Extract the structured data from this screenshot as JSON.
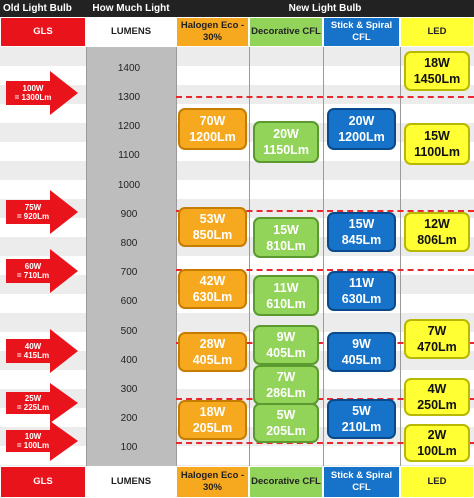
{
  "top_headers": {
    "old": "Old Light Bulb",
    "how": "How Much Light",
    "new": "New Light Bulb"
  },
  "columns": {
    "gls": "GLS",
    "lumens": "LUMENS",
    "halogen": "Halogen Eco -\n30%",
    "decorative": "Decorative CFL",
    "spiral": "Stick & Spiral CFL",
    "led": "LED"
  },
  "lumen_ticks": [
    "1400",
    "1300",
    "1200",
    "1100",
    "1000",
    "900",
    "800",
    "700",
    "600",
    "500",
    "400",
    "300",
    "200",
    "100"
  ],
  "gls_arrows": [
    "100W\n= 1300Lm",
    "75W\n= 920Lm",
    "60W\n= 710Lm",
    "40W\n= 415Lm",
    "25W\n= 225Lm",
    "10W\n= 100Lm"
  ],
  "halogen_boxes": [
    "70W\n1200Lm",
    "53W\n850Lm",
    "42W\n630Lm",
    "28W\n405Lm",
    "18W\n205Lm"
  ],
  "decorative_boxes": [
    "20W\n1150Lm",
    "15W\n810Lm",
    "11W\n610Lm",
    "9W\n405Lm",
    "7W\n286Lm",
    "5W\n205Lm"
  ],
  "spiral_boxes": [
    "20W\n1200Lm",
    "15W\n845Lm",
    "11W\n630Lm",
    "9W\n405Lm",
    "5W\n210Lm"
  ],
  "led_boxes": [
    "18W\n1450Lm",
    "15W\n1100Lm",
    "12W\n806Lm",
    "7W\n470Lm",
    "4W\n250Lm",
    "2W\n100Lm"
  ],
  "colors": {
    "gls_red": "#e8131b",
    "lumens_gray": "#bdbdbd",
    "halogen": "#f6a81f",
    "decorative": "#92d35a",
    "spiral": "#1673c9",
    "led": "#ffff33",
    "dash_red": "#e8282c"
  }
}
